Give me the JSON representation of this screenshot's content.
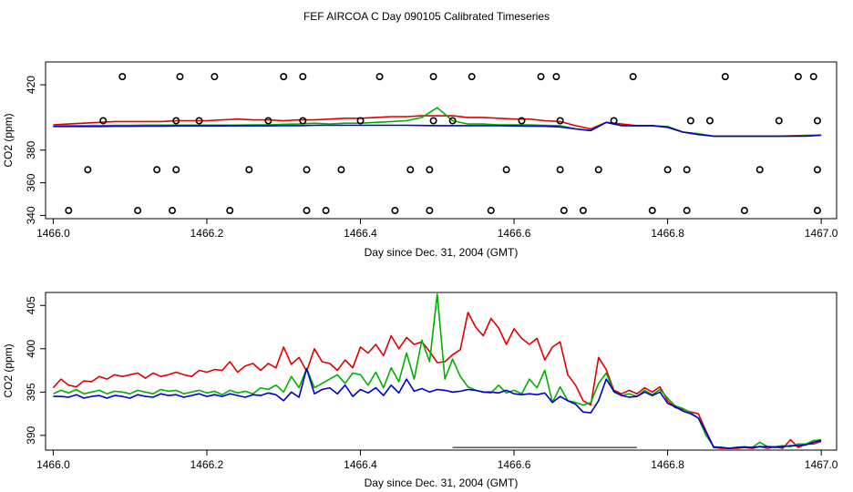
{
  "title": "FEF AIRCOA C  Day 090105  Calibrated Timeseries",
  "chart_data": [
    {
      "type": "line",
      "ylabel": "CO2 (ppm)",
      "xlabel": "Day since Dec. 31, 2004 (GMT)",
      "xlim": [
        1465.99,
        1467.02
      ],
      "ylim": [
        338,
        434
      ],
      "xticks": [
        "1466.0",
        "1466.2",
        "1466.4",
        "1466.6",
        "1466.8",
        "1467.0"
      ],
      "yticks": [
        "340",
        "360",
        "380",
        "420"
      ],
      "x": [
        1466.0,
        1466.02,
        1466.04,
        1466.06,
        1466.08,
        1466.1,
        1466.12,
        1466.14,
        1466.16,
        1466.18,
        1466.2,
        1466.22,
        1466.24,
        1466.26,
        1466.28,
        1466.3,
        1466.32,
        1466.34,
        1466.36,
        1466.38,
        1466.4,
        1466.42,
        1466.44,
        1466.46,
        1466.48,
        1466.5,
        1466.52,
        1466.54,
        1466.56,
        1466.58,
        1466.6,
        1466.62,
        1466.64,
        1466.66,
        1466.68,
        1466.7,
        1466.72,
        1466.74,
        1466.76,
        1466.78,
        1466.8,
        1466.82,
        1466.84,
        1466.86,
        1466.88,
        1466.9,
        1466.92,
        1466.94,
        1466.96,
        1466.98,
        1467.0
      ],
      "series": [
        {
          "name": "red",
          "color": "#e00000",
          "values": [
            395.5,
            396,
            396.5,
            397,
            397.5,
            397.5,
            397.5,
            397.5,
            398,
            398,
            398,
            398.5,
            399,
            398.5,
            398.5,
            398,
            398.5,
            398.5,
            399,
            399.5,
            399.5,
            400,
            400.5,
            400.5,
            401,
            401,
            401,
            400,
            400,
            399.5,
            399,
            399,
            398,
            397.5,
            395,
            393,
            397,
            396,
            395,
            395,
            394,
            391,
            390,
            388.5,
            388.5,
            388.5,
            388.5,
            388.5,
            388.8,
            389,
            389.2
          ]
        },
        {
          "name": "green",
          "color": "#00b000",
          "values": [
            395,
            395,
            395,
            395,
            395.2,
            395.2,
            395.3,
            395.3,
            395.3,
            395.3,
            395.3,
            395.3,
            395.3,
            395.5,
            395.5,
            395.8,
            396,
            396.5,
            396,
            396.5,
            396.5,
            397,
            397.5,
            398,
            400,
            406,
            398,
            396,
            396,
            395.5,
            395.5,
            395.5,
            395.2,
            395,
            393,
            392,
            397,
            395,
            395,
            395,
            394.5,
            391,
            390,
            388.5,
            388.5,
            388.5,
            388.5,
            388.5,
            388.5,
            388.8,
            389.2
          ]
        },
        {
          "name": "blue",
          "color": "#0000cc",
          "values": [
            394.5,
            394.5,
            394.5,
            394.5,
            394.6,
            394.6,
            394.7,
            394.7,
            394.8,
            394.8,
            394.8,
            394.8,
            394.9,
            394.9,
            394.9,
            395,
            395,
            395.2,
            395.2,
            395.2,
            395.2,
            395.2,
            395.2,
            395.2,
            395.1,
            395,
            395,
            395,
            395,
            395,
            394.8,
            394.7,
            394.6,
            394.2,
            393,
            392,
            397,
            395,
            395,
            395,
            394,
            391,
            389.5,
            388.5,
            388.5,
            388.5,
            388.5,
            388.5,
            388.5,
            388.5,
            389.2
          ]
        }
      ],
      "markers_circle": [
        [
          1466.02,
          343
        ],
        [
          1466.045,
          368
        ],
        [
          1466.065,
          398
        ],
        [
          1466.09,
          425
        ],
        [
          1466.11,
          343
        ],
        [
          1466.135,
          368
        ],
        [
          1466.155,
          343
        ],
        [
          1466.16,
          368
        ],
        [
          1466.16,
          398
        ],
        [
          1466.165,
          425
        ],
        [
          1466.19,
          398
        ],
        [
          1466.21,
          425
        ],
        [
          1466.23,
          343
        ],
        [
          1466.255,
          368
        ],
        [
          1466.28,
          398
        ],
        [
          1466.3,
          425
        ],
        [
          1466.325,
          425
        ],
        [
          1466.325,
          398
        ],
        [
          1466.33,
          368
        ],
        [
          1466.33,
          343
        ],
        [
          1466.355,
          343
        ],
        [
          1466.375,
          368
        ],
        [
          1466.4,
          398
        ],
        [
          1466.425,
          425
        ],
        [
          1466.445,
          343
        ],
        [
          1466.465,
          368
        ],
        [
          1466.49,
          368
        ],
        [
          1466.49,
          343
        ],
        [
          1466.495,
          398
        ],
        [
          1466.495,
          425
        ],
        [
          1466.52,
          398
        ],
        [
          1466.545,
          425
        ],
        [
          1466.57,
          343
        ],
        [
          1466.59,
          368
        ],
        [
          1466.61,
          398
        ],
        [
          1466.635,
          425
        ],
        [
          1466.655,
          425
        ],
        [
          1466.66,
          398
        ],
        [
          1466.66,
          368
        ],
        [
          1466.665,
          343
        ],
        [
          1466.69,
          343
        ],
        [
          1466.71,
          368
        ],
        [
          1466.73,
          398
        ],
        [
          1466.755,
          425
        ],
        [
          1466.78,
          343
        ],
        [
          1466.8,
          368
        ],
        [
          1466.825,
          368
        ],
        [
          1466.825,
          343
        ],
        [
          1466.83,
          398
        ],
        [
          1466.855,
          398
        ],
        [
          1466.875,
          425
        ],
        [
          1466.9,
          343
        ],
        [
          1466.92,
          368
        ],
        [
          1466.945,
          398
        ],
        [
          1466.97,
          425
        ],
        [
          1466.99,
          425
        ],
        [
          1466.995,
          398
        ],
        [
          1466.995,
          368
        ],
        [
          1466.995,
          343
        ]
      ]
    },
    {
      "type": "line",
      "ylabel": "CO2 (ppm)",
      "xlabel": "Day since Dec. 31, 2004 (GMT)",
      "xlim": [
        1465.99,
        1467.02
      ],
      "ylim": [
        388.3,
        406.5
      ],
      "xticks": [
        "1466.0",
        "1466.2",
        "1466.4",
        "1466.6",
        "1466.8",
        "1467.0"
      ],
      "yticks": [
        "390",
        "395",
        "400",
        "405"
      ],
      "x": [
        1466.0,
        1466.01,
        1466.02,
        1466.03,
        1466.04,
        1466.05,
        1466.06,
        1466.07,
        1466.08,
        1466.09,
        1466.1,
        1466.11,
        1466.12,
        1466.13,
        1466.14,
        1466.15,
        1466.16,
        1466.17,
        1466.18,
        1466.19,
        1466.2,
        1466.21,
        1466.22,
        1466.23,
        1466.24,
        1466.25,
        1466.26,
        1466.27,
        1466.28,
        1466.29,
        1466.3,
        1466.31,
        1466.32,
        1466.33,
        1466.34,
        1466.35,
        1466.36,
        1466.37,
        1466.38,
        1466.39,
        1466.4,
        1466.41,
        1466.42,
        1466.43,
        1466.44,
        1466.45,
        1466.46,
        1466.47,
        1466.48,
        1466.49,
        1466.5,
        1466.51,
        1466.52,
        1466.53,
        1466.54,
        1466.55,
        1466.56,
        1466.57,
        1466.58,
        1466.59,
        1466.6,
        1466.61,
        1466.62,
        1466.63,
        1466.64,
        1466.65,
        1466.66,
        1466.67,
        1466.68,
        1466.69,
        1466.7,
        1466.71,
        1466.72,
        1466.73,
        1466.74,
        1466.75,
        1466.76,
        1466.77,
        1466.78,
        1466.79,
        1466.8,
        1466.81,
        1466.82,
        1466.83,
        1466.84,
        1466.85,
        1466.86,
        1466.87,
        1466.88,
        1466.89,
        1466.9,
        1466.91,
        1466.92,
        1466.93,
        1466.94,
        1466.95,
        1466.96,
        1466.97,
        1466.98,
        1466.99,
        1467.0
      ],
      "series": [
        {
          "name": "red",
          "color": "#e00000",
          "values": [
            395.5,
            396.5,
            395.8,
            395.6,
            396.3,
            396.2,
            396.8,
            396.5,
            397,
            396.8,
            397,
            397.2,
            396.6,
            397.2,
            396.8,
            397,
            397.3,
            397,
            396.8,
            397.5,
            397.3,
            397.6,
            397.5,
            398.5,
            397.3,
            398,
            398.3,
            397.5,
            398.3,
            397.8,
            400.2,
            398.2,
            399,
            397.4,
            400,
            398.5,
            398.3,
            397.5,
            398.7,
            397.8,
            400.2,
            399.5,
            400.5,
            399.2,
            401.5,
            400,
            401.3,
            400.5,
            400.8,
            399.7,
            398.4,
            398.5,
            399.3,
            399.9,
            404.2,
            402.5,
            401.5,
            403.5,
            402.4,
            400.5,
            402.3,
            401.2,
            400.5,
            401.2,
            398.7,
            400.2,
            400.8,
            397,
            395.8,
            394,
            393.5,
            399,
            397.6,
            395.2,
            394.8,
            395.2,
            394.8,
            395.5,
            395,
            395.6,
            394,
            393.2,
            393,
            392.7,
            392.5,
            390.5,
            388.6,
            388.5,
            388.5,
            388.5,
            388.6,
            388.5,
            388.7,
            388.5,
            388.7,
            388.5,
            389.5,
            388.6,
            389,
            389,
            389.3
          ]
        },
        {
          "name": "green",
          "color": "#00b000",
          "values": [
            394.8,
            395.2,
            394.9,
            395.3,
            394.8,
            395,
            395.2,
            394.8,
            395.1,
            395,
            394.8,
            395.2,
            395,
            394.8,
            395.3,
            395.1,
            395.2,
            394.8,
            395,
            395.2,
            394.9,
            395.1,
            394.7,
            395.2,
            394.9,
            395.1,
            394.8,
            395.5,
            395.3,
            395.8,
            395,
            396.8,
            395.5,
            397.7,
            395.5,
            396,
            396.5,
            397,
            396,
            397.2,
            397,
            395.8,
            397.3,
            395.5,
            397.8,
            396.2,
            399.5,
            396.5,
            401,
            398.5,
            406.3,
            396.5,
            398.8,
            396.8,
            395.6,
            395.2,
            395,
            394.9,
            395.8,
            394.9,
            395.2,
            394.8,
            396.5,
            395.5,
            397.5,
            393.8,
            395.6,
            394,
            393.8,
            393.5,
            393.8,
            396,
            397.2,
            395,
            394.6,
            394.8,
            394.5,
            395.2,
            394.7,
            395.3,
            394.3,
            393.4,
            393.1,
            392.6,
            392,
            390,
            388.7,
            388.6,
            388.5,
            388.6,
            388.7,
            388.6,
            389.2,
            388.7,
            388.7,
            388.8,
            388.7,
            389,
            389,
            389.4,
            389.5
          ]
        },
        {
          "name": "blue",
          "color": "#0000cc",
          "values": [
            394.5,
            394.5,
            394.4,
            394.7,
            394.3,
            394.5,
            394.6,
            394.3,
            394.6,
            394.5,
            394.3,
            394.7,
            394.5,
            394.4,
            394.8,
            394.6,
            394.7,
            394.4,
            394.6,
            394.8,
            394.5,
            394.7,
            394.5,
            394.8,
            394.6,
            394.4,
            394.7,
            394.6,
            394.9,
            394.7,
            394,
            395,
            394.4,
            397.7,
            394.8,
            395.3,
            395.5,
            394.8,
            395.8,
            394.5,
            395.3,
            394.9,
            395.5,
            394.6,
            395.8,
            394.9,
            396.5,
            395.1,
            395.4,
            395,
            395.3,
            395.2,
            395,
            395.1,
            395.3,
            395.2,
            395,
            395,
            394.9,
            395.2,
            394.8,
            394.7,
            394.8,
            394.7,
            394.9,
            393.8,
            394.5,
            394,
            393.6,
            392.7,
            392.6,
            394,
            396.5,
            395.1,
            394.6,
            394.4,
            394.5,
            395,
            394.6,
            395,
            393.7,
            393.3,
            392.8,
            392.5,
            392,
            390.4,
            388.6,
            388.6,
            388.5,
            388.6,
            388.6,
            388.6,
            388.7,
            388.7,
            388.6,
            388.7,
            388.8,
            388.8,
            388.9,
            389.2,
            389.4
          ]
        }
      ],
      "hline": {
        "x": [
          1466.52,
          1466.76
        ],
        "y": 388.6
      }
    }
  ]
}
